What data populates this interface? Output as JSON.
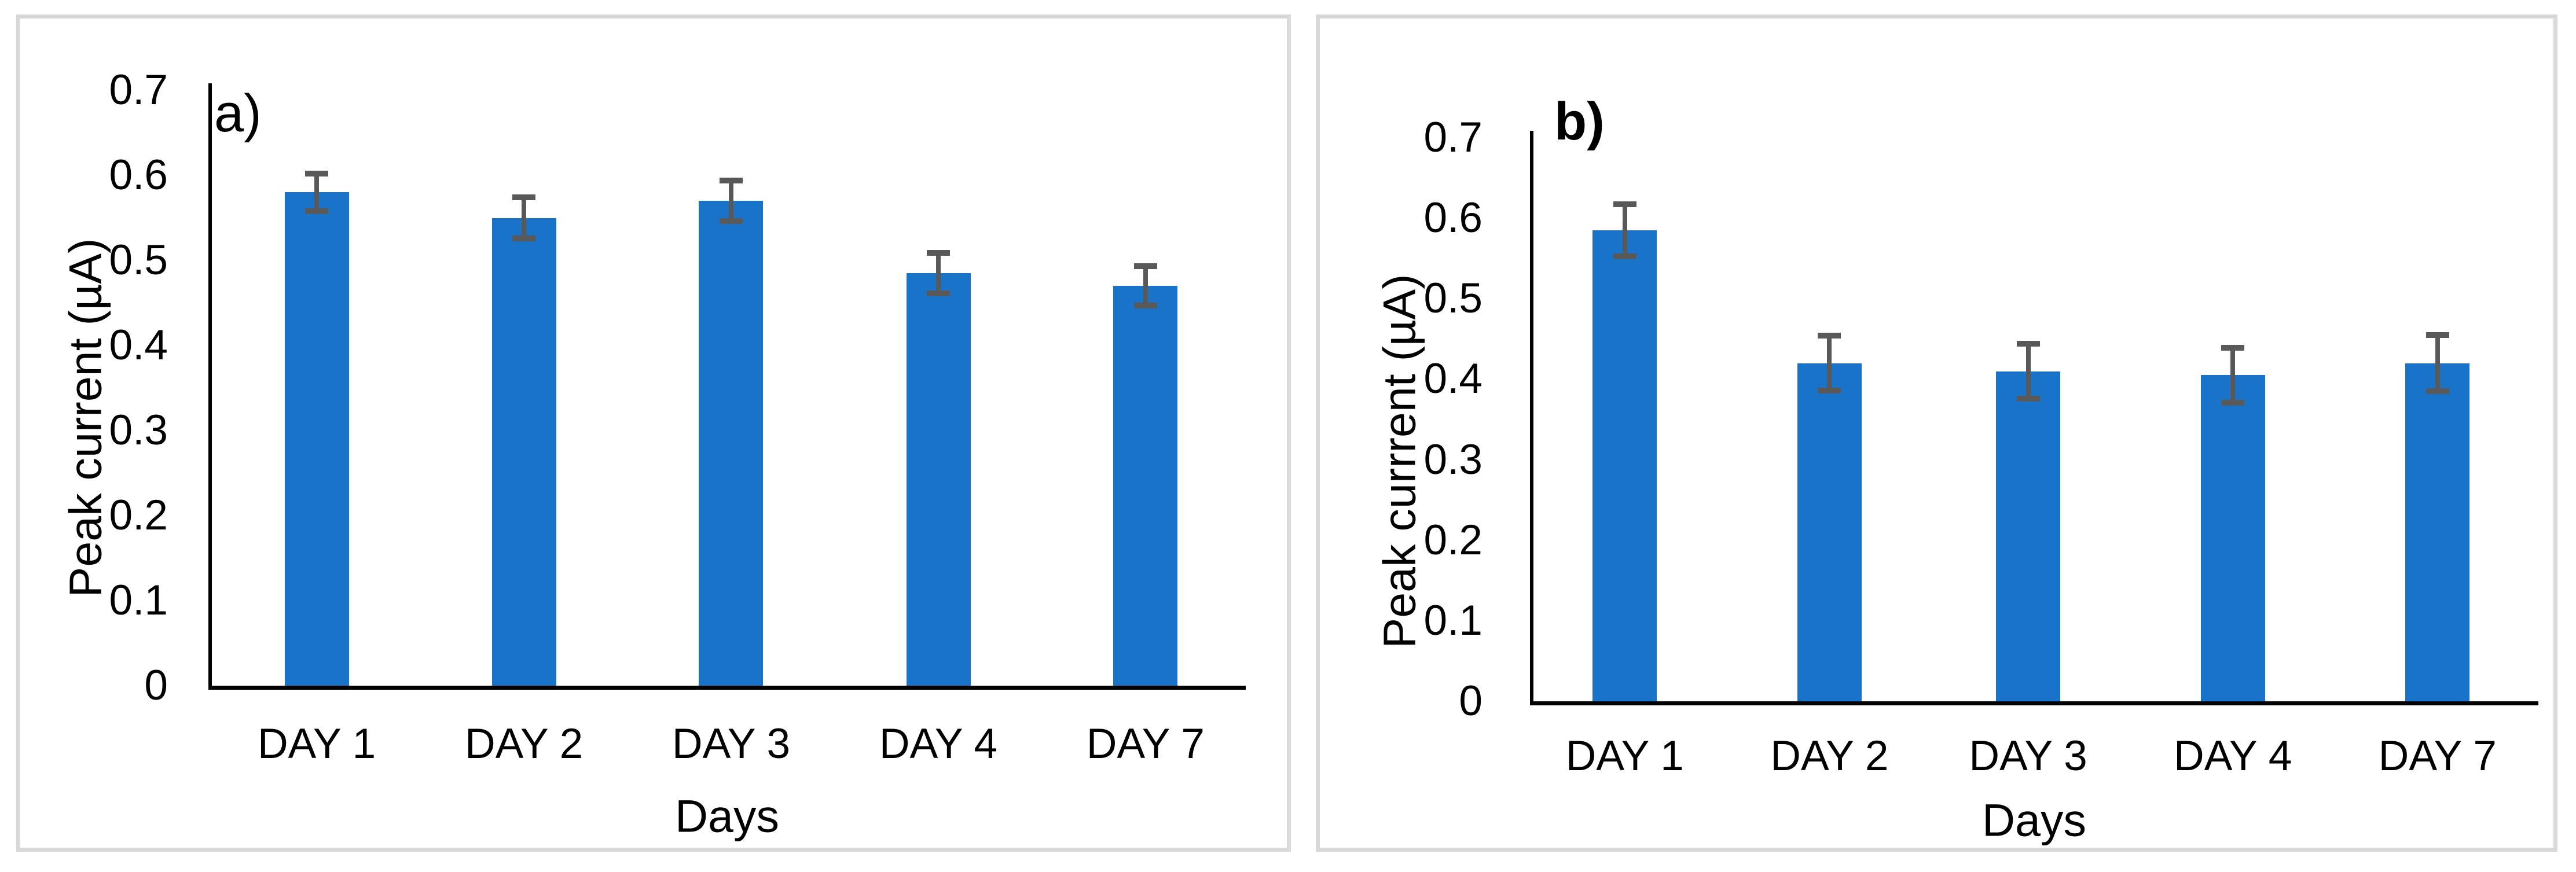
{
  "figure": {
    "background_color": "#ffffff",
    "panel_border_color": "#d9d9d9",
    "text_color": "#000000"
  },
  "chart_data": [
    {
      "type": "bar",
      "panel_label": "a)",
      "title": "",
      "xlabel": "Days",
      "ylabel": "Peak current (µA)",
      "categories": [
        "DAY 1",
        "DAY 2",
        "DAY 3",
        "DAY 4",
        "DAY 7"
      ],
      "values": [
        0.58,
        0.55,
        0.57,
        0.485,
        0.47
      ],
      "errors": [
        0.022,
        0.024,
        0.024,
        0.024,
        0.023
      ],
      "ylim": [
        0,
        0.7
      ],
      "ytick_labels": [
        "0.7",
        "0.6",
        "0.5",
        "0.4",
        "0.3",
        "0.2",
        "0.1",
        "0"
      ],
      "yticks": [
        0.7,
        0.6,
        0.5,
        0.4,
        0.3,
        0.2,
        0.1,
        0
      ],
      "grid": false,
      "legend": false,
      "bar_color": "#1973c8",
      "error_color": "#595959",
      "axis_color": "#000000"
    },
    {
      "type": "bar",
      "panel_label": "b)",
      "title": "",
      "xlabel": "Days",
      "ylabel": "Peak currrent (µA)",
      "categories": [
        "DAY 1",
        "DAY 2",
        "DAY 3",
        "DAY 4",
        "DAY 7"
      ],
      "values": [
        0.585,
        0.42,
        0.41,
        0.405,
        0.42
      ],
      "errors": [
        0.032,
        0.034,
        0.034,
        0.034,
        0.035
      ],
      "ylim": [
        0,
        0.7
      ],
      "ytick_labels": [
        "0.7",
        "0.6",
        "0.5",
        "0.4",
        "0.3",
        "0.2",
        "0.1",
        "0"
      ],
      "yticks": [
        0.7,
        0.6,
        0.5,
        0.4,
        0.3,
        0.2,
        0.1,
        0
      ],
      "grid": false,
      "legend": false,
      "bar_color": "#1973c8",
      "error_color": "#595959",
      "axis_color": "#000000"
    }
  ]
}
